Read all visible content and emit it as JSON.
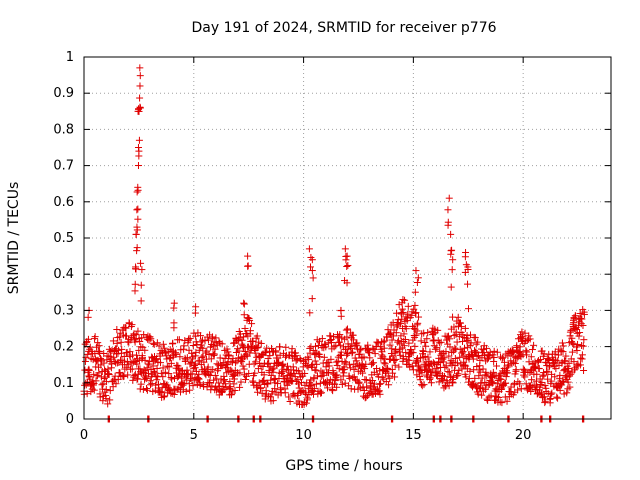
{
  "chart_data": {
    "type": "scatter",
    "title": "Day 191 of 2024, SRMTID for receiver p776",
    "xlabel": "GPS time / hours",
    "ylabel": "SRMTID / TECUs",
    "xlim": [
      0,
      24
    ],
    "ylim": [
      0,
      1
    ],
    "xticks": [
      0,
      5,
      10,
      15,
      20
    ],
    "yticks": [
      0,
      0.1,
      0.2,
      0.3,
      0.4,
      0.5,
      0.6,
      0.7,
      0.8,
      0.9,
      1
    ],
    "ytick_labels": [
      "0",
      "0.1",
      "0.2",
      "0.3",
      "0.4",
      "0.5",
      "0.6",
      "0.7",
      "0.8",
      "0.9",
      "1"
    ],
    "grid": true,
    "marker": "+",
    "color": "#e00000",
    "series": [
      {
        "name": "SRMTID",
        "baseline": [
          [
            0.0,
            0.13
          ],
          [
            0.5,
            0.16
          ],
          [
            1.0,
            0.1
          ],
          [
            1.5,
            0.17
          ],
          [
            2.0,
            0.2
          ],
          [
            2.5,
            0.16
          ],
          [
            3.0,
            0.15
          ],
          [
            3.5,
            0.13
          ],
          [
            4.0,
            0.14
          ],
          [
            4.5,
            0.15
          ],
          [
            5.0,
            0.16
          ],
          [
            5.5,
            0.17
          ],
          [
            6.0,
            0.15
          ],
          [
            6.5,
            0.12
          ],
          [
            7.0,
            0.16
          ],
          [
            7.5,
            0.2
          ],
          [
            8.0,
            0.14
          ],
          [
            8.5,
            0.12
          ],
          [
            9.0,
            0.13
          ],
          [
            9.5,
            0.12
          ],
          [
            10.0,
            0.1
          ],
          [
            10.5,
            0.14
          ],
          [
            11.0,
            0.15
          ],
          [
            11.5,
            0.16
          ],
          [
            12.0,
            0.17
          ],
          [
            12.5,
            0.14
          ],
          [
            13.0,
            0.13
          ],
          [
            13.5,
            0.14
          ],
          [
            14.0,
            0.18
          ],
          [
            14.5,
            0.25
          ],
          [
            15.0,
            0.22
          ],
          [
            15.5,
            0.16
          ],
          [
            16.0,
            0.18
          ],
          [
            16.5,
            0.15
          ],
          [
            17.0,
            0.2
          ],
          [
            17.5,
            0.18
          ],
          [
            18.0,
            0.14
          ],
          [
            18.5,
            0.12
          ],
          [
            19.0,
            0.11
          ],
          [
            19.5,
            0.12
          ],
          [
            20.0,
            0.17
          ],
          [
            20.5,
            0.14
          ],
          [
            21.0,
            0.11
          ],
          [
            21.5,
            0.12
          ],
          [
            22.0,
            0.15
          ],
          [
            22.5,
            0.22
          ],
          [
            22.8,
            0.22
          ]
        ],
        "spikes": [
          [
            0.2,
            0.3
          ],
          [
            2.35,
            0.42
          ],
          [
            2.4,
            0.51
          ],
          [
            2.42,
            0.58
          ],
          [
            2.45,
            0.64
          ],
          [
            2.47,
            0.75
          ],
          [
            2.5,
            0.85
          ],
          [
            2.52,
            0.92
          ],
          [
            2.55,
            0.97
          ],
          [
            2.6,
            0.43
          ],
          [
            4.1,
            0.32
          ],
          [
            5.1,
            0.31
          ],
          [
            7.3,
            0.32
          ],
          [
            7.45,
            0.45
          ],
          [
            10.3,
            0.47
          ],
          [
            10.4,
            0.44
          ],
          [
            11.7,
            0.3
          ],
          [
            11.9,
            0.47
          ],
          [
            12.0,
            0.45
          ],
          [
            14.5,
            0.33
          ],
          [
            15.1,
            0.41
          ],
          [
            15.2,
            0.39
          ],
          [
            16.6,
            0.61
          ],
          [
            16.7,
            0.51
          ],
          [
            16.75,
            0.44
          ],
          [
            17.4,
            0.46
          ],
          [
            17.5,
            0.42
          ],
          [
            22.3,
            0.28
          ]
        ],
        "zero_points": [
          1.1,
          2.9,
          5.6,
          7.0,
          7.7,
          8.0,
          10.4,
          14.0,
          15.9,
          16.2,
          16.7,
          17.7,
          19.3,
          20.8,
          21.2,
          22.7
        ]
      }
    ]
  }
}
